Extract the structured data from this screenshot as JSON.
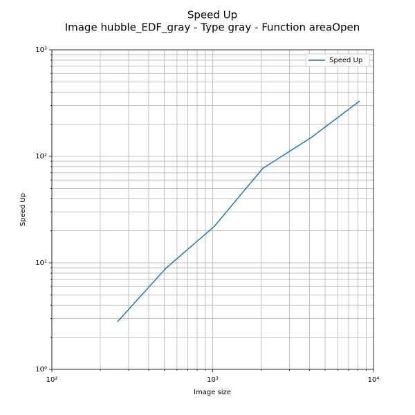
{
  "chart_data": {
    "type": "line",
    "title": "Speed Up",
    "subtitle": "Image hubble_EDF_gray - Type gray - Function areaOpen",
    "x_label": "Image size",
    "y_label": "Speed Up",
    "x": [
      256,
      512,
      1024,
      2048,
      4096,
      8192
    ],
    "series": [
      {
        "name": "Speed Up",
        "color": "#1f77b4",
        "values": [
          2.8,
          8.9,
          22,
          77,
          150,
          330
        ]
      }
    ],
    "xscale": "log",
    "yscale": "log",
    "xlim": [
      100,
      10000
    ],
    "xticks": [
      {
        "value": 100,
        "label": "10²"
      },
      {
        "value": 1000,
        "label": "10³"
      },
      {
        "value": 10000,
        "label": "10⁴"
      }
    ],
    "xminorticks": [
      200,
      300,
      400,
      500,
      600,
      700,
      800,
      900,
      2000,
      3000,
      4000,
      5000,
      6000,
      7000,
      8000,
      9000
    ],
    "ylim": [
      1,
      1000
    ],
    "yticks": [
      {
        "value": 1,
        "label": "10⁰"
      },
      {
        "value": 10,
        "label": "10¹"
      },
      {
        "value": 100,
        "label": "10²"
      },
      {
        "value": 1000,
        "label": "10³"
      }
    ],
    "yminorticks": [
      2,
      3,
      4,
      5,
      6,
      7,
      8,
      9,
      20,
      30,
      40,
      50,
      60,
      70,
      80,
      90,
      200,
      300,
      400,
      500,
      600,
      700,
      800,
      900
    ],
    "grid": true,
    "legend": "upper right"
  }
}
